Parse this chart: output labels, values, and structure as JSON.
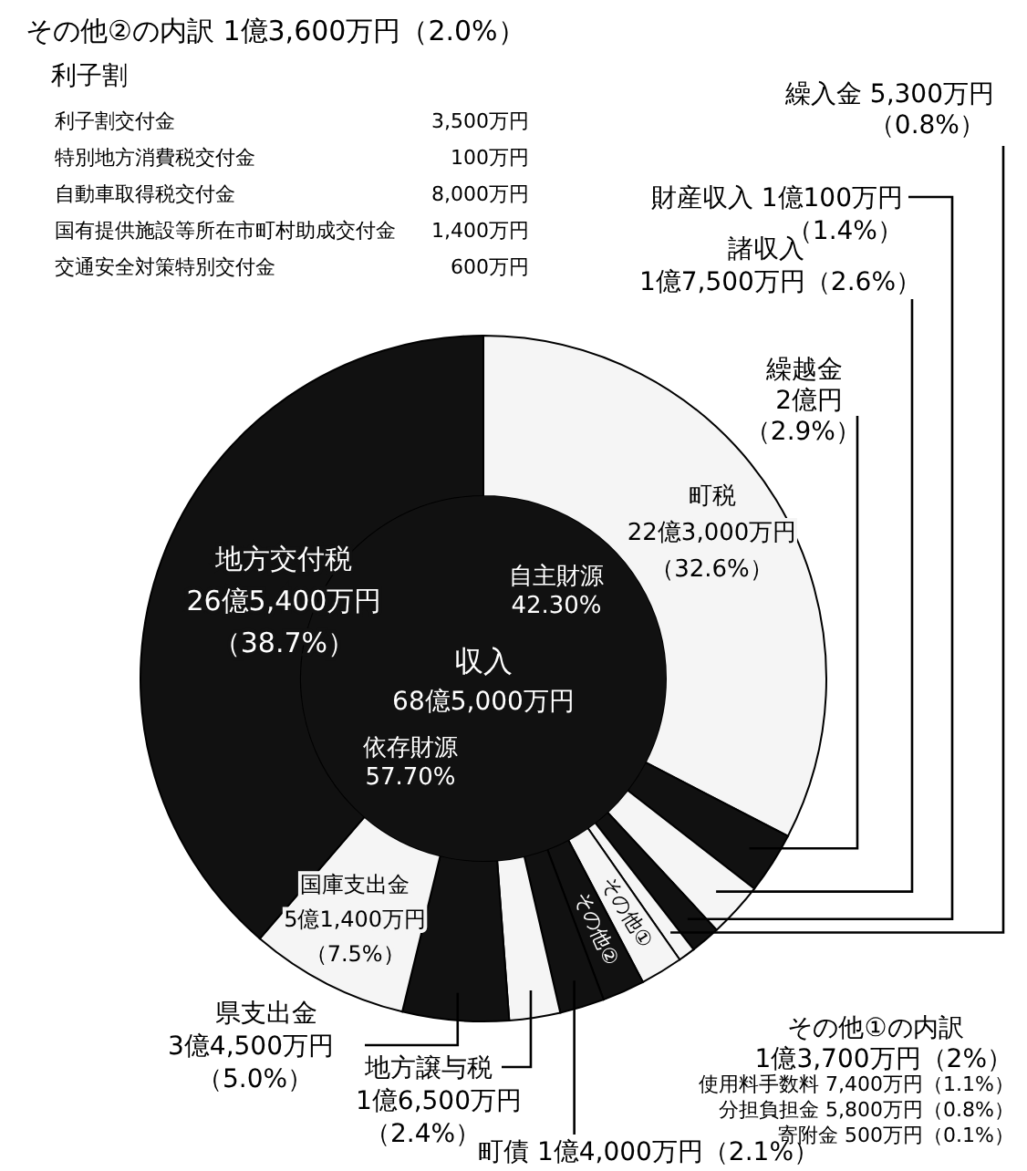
{
  "chart_data": {
    "type": "donut",
    "title": "収入",
    "subtitle": "68億5,000万円",
    "categories": [
      "町税",
      "繰越金",
      "諸収入",
      "財産収入",
      "繰入金",
      "その他①",
      "その他②",
      "町債",
      "地方譲与税",
      "県支出金",
      "国庫支出金",
      "地方交付税"
    ],
    "values": [
      32.6,
      2.9,
      2.6,
      1.4,
      0.8,
      2.0,
      2.0,
      2.1,
      2.4,
      5.0,
      7.5,
      38.7
    ],
    "colors": [
      "#f5f5f5",
      "#111111",
      "#f5f5f5",
      "#111111",
      "#f5f5f5",
      "#f5f5f5",
      "#111111",
      "#111111",
      "#f5f5f5",
      "#111111",
      "#f5f5f5",
      "#111111"
    ],
    "value_labels": [
      "22億3,000万円（32.6%）",
      "2億円（2.9%）",
      "1億7,500万円（2.6%）",
      "1億100万円（1.4%）",
      "5,300万円（0.8%）",
      null,
      null,
      "1億4,000万円（2.1%）",
      "1億6,500万円（2.4%）",
      "3億4,500万円（5.0%）",
      "5億1,400万円（7.5%）",
      "26億5,400万円（38.7%）"
    ],
    "annotations": [
      "自主財源 42.30%",
      "依存財源 57.70%",
      "その他②の内訳 1億3,600万円（2.0%）",
      "利子割",
      "利子割交付金 3,500万円",
      "特別地方消費税交付金 100万円",
      "自動車取得税交付金 8,000万円",
      "国有提供施設等所在市町村助成交付金 1,400万円",
      "交通安全対策特別交付金 600万円",
      "その他①の内訳 1億3,700万円（2%）",
      "使用料手数料 7,400万円（1.1%）",
      "分担負担金 5,800万円（0.8%）",
      "寄附金 500万円（0.1%）"
    ]
  }
}
